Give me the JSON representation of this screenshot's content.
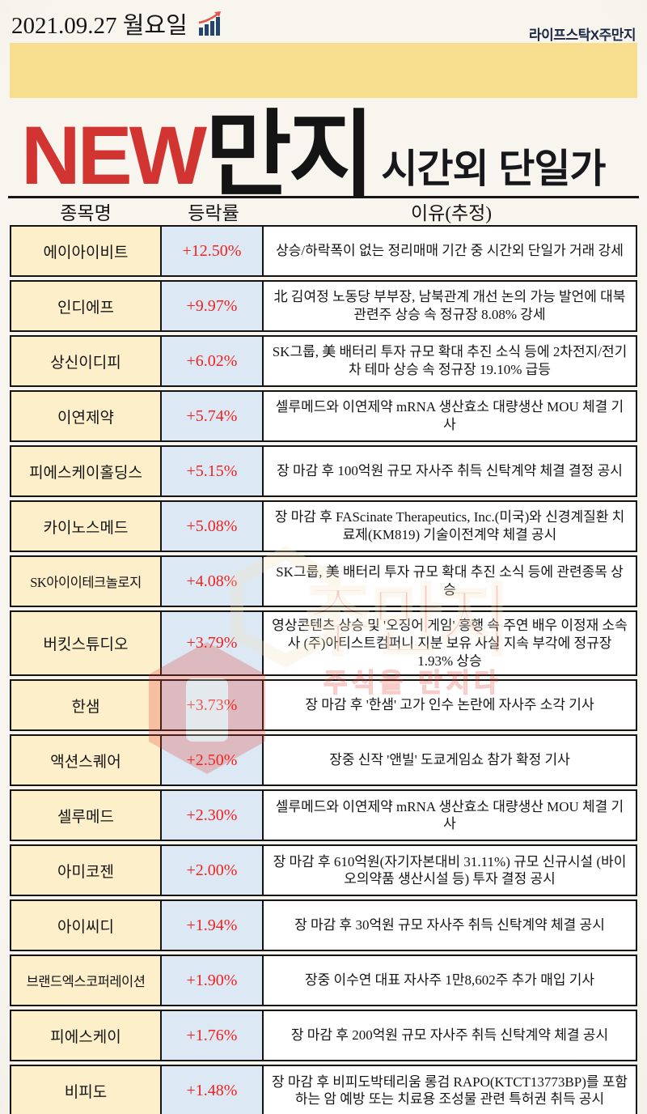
{
  "page": {
    "date": "2021.09.27  월요일",
    "brand": "라이프스탁X주만지"
  },
  "title": {
    "new": "NEW",
    "main": "만지",
    "sub": "시간외 단일가"
  },
  "watermark": {
    "text": "주만지",
    "subtext": "주식을 만지다"
  },
  "colors": {
    "accent_red": "#d23531",
    "rate_red": "#f1211f",
    "banner_yellow": "#f7dd8e",
    "name_cell_bg": "#fcefc9",
    "rate_cell_bg": "#dce8f3",
    "brand_navy": "#1c2844",
    "icon_bar_navy": "#24456e",
    "icon_arrow_red": "#e2574b"
  },
  "table": {
    "columns": [
      "종목명",
      "등락률",
      "이유(추정)"
    ],
    "rows": [
      {
        "name": "에이아이비트",
        "rate": "+12.50%",
        "reason": "상승/하락폭이 없는 정리매매 기간 중 시간외 단일가 거래 강세"
      },
      {
        "name": "인디에프",
        "rate": "+9.97%",
        "reason": "北 김여정 노동당 부부장, 남북관계 개선 논의 가능 발언에 대북관련주 상승 속 정규장 8.08% 강세"
      },
      {
        "name": "상신이디피",
        "rate": "+6.02%",
        "reason": "SK그룹, 美 배터리 투자 규모 확대 추진 소식 등에 2차전지/전기차 테마 상승 속 정규장 19.10% 급등"
      },
      {
        "name": "이연제약",
        "rate": "+5.74%",
        "reason": "셀루메드와 이연제약 mRNA 생산효소 대량생산 MOU 체결 기사"
      },
      {
        "name": "피에스케이홀딩스",
        "rate": "+5.15%",
        "reason": "장 마감 후 100억원 규모 자사주 취득 신탁계약 체결 결정 공시"
      },
      {
        "name": "카이노스메드",
        "rate": "+5.08%",
        "reason": "장 마감 후 FAScinate Therapeutics, Inc.(미국)와 신경계질환 치료제(KM819) 기술이전계약 체결 공시"
      },
      {
        "name": "SK아이이테크놀로지",
        "rate": "+4.08%",
        "reason": "SK그룹, 美 배터리 투자 규모 확대 추진 소식 등에 관련종목 상승"
      },
      {
        "name": "버킷스튜디오",
        "rate": "+3.79%",
        "reason": "영상콘텐츠 상승 및 '오징어 게임' 흥행 속 주연 배우 이정재 소속사 (주)아티스트컴퍼니 지분 보유 사실 지속 부각에 정규장 1.93% 상승"
      },
      {
        "name": "한샘",
        "rate": "+3.73%",
        "reason": "장 마감 후 '한샘' 고가 인수 논란에 자사주 소각 기사"
      },
      {
        "name": "액션스퀘어",
        "rate": "+2.50%",
        "reason": "장중 신작 '앤빌' 도쿄게임쇼 참가 확정 기사"
      },
      {
        "name": "셀루메드",
        "rate": "+2.30%",
        "reason": "셀루메드와 이연제약 mRNA 생산효소 대량생산 MOU 체결 기사"
      },
      {
        "name": "아미코젠",
        "rate": "+2.00%",
        "reason": "장 마감 후 610억원(자기자본대비 31.11%) 규모 신규시설 (바이오의약품 생산시설 등) 투자 결정 공시"
      },
      {
        "name": "아이씨디",
        "rate": "+1.94%",
        "reason": "장 마감 후 30억원 규모 자사주 취득 신탁계약 체결 공시"
      },
      {
        "name": "브랜드엑스코퍼레이션",
        "rate": "+1.90%",
        "reason": "장중 이수연 대표 자사주 1만8,602주 추가 매입 기사"
      },
      {
        "name": "피에스케이",
        "rate": "+1.76%",
        "reason": "장 마감 후 200억원 규모 자사주 취득 신탁계약 체결 공시"
      },
      {
        "name": "비피도",
        "rate": "+1.48%",
        "reason": "장 마감 후 비피도박테리움 롱검 RAPO(KTCT13773BP)를 포함하는 암 예방 또는 치료용 조성물 관련 특허권 취득 공시"
      }
    ]
  }
}
